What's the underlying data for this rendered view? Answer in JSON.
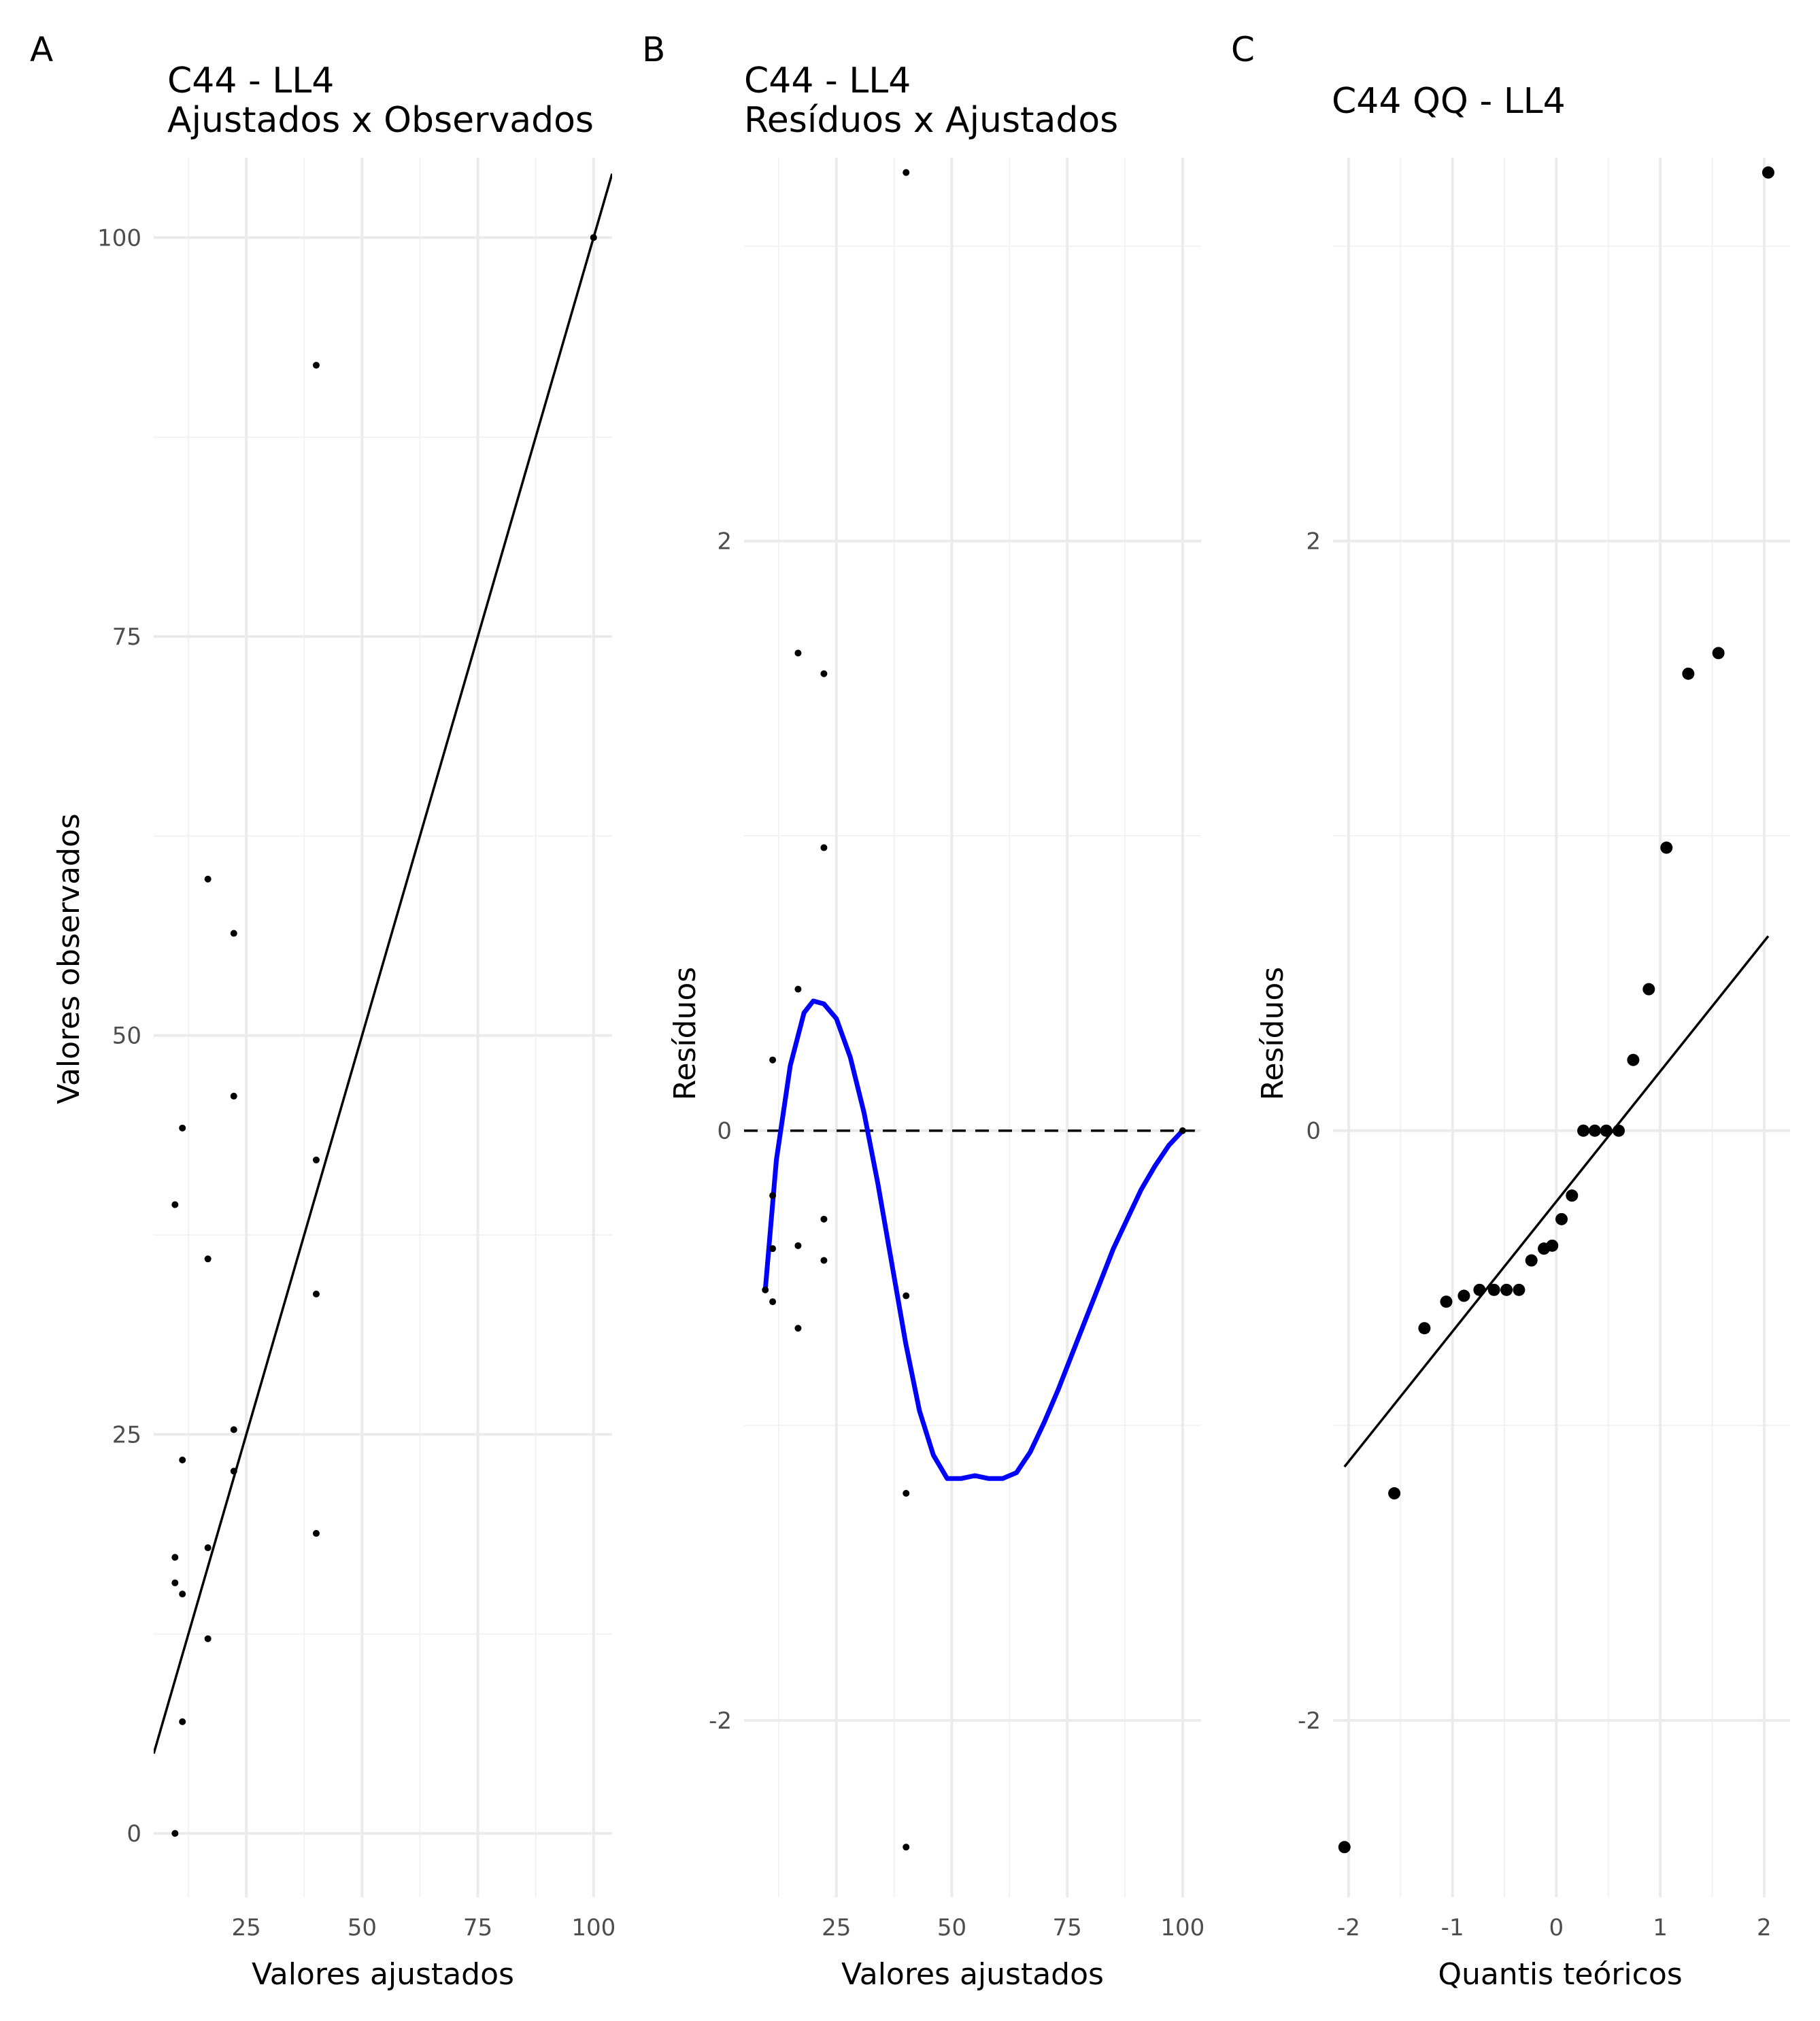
{
  "panels": [
    {
      "letter": "A",
      "title_line1": "C44 - LL4",
      "title_line2": "Ajustados x Observados",
      "xlabel": "Valores ajustados",
      "ylabel": "Valores observados"
    },
    {
      "letter": "B",
      "title_line1": "C44 - LL4",
      "title_line2": "Resíduos x Ajustados",
      "xlabel": "Valores ajustados",
      "ylabel": "Resíduos"
    },
    {
      "letter": "C",
      "title_line1": "C44 QQ - LL4",
      "title_line2": "",
      "xlabel": "Quantis teóricos",
      "ylabel": "Resíduos"
    }
  ],
  "chart_data": [
    {
      "type": "scatter",
      "title": "C44 - LL4 Ajustados x Observados",
      "xlabel": "Valores ajustados",
      "ylabel": "Valores observados",
      "xlim": [
        5,
        104
      ],
      "ylim": [
        -4,
        105
      ],
      "xticks": [
        25,
        50,
        75,
        100
      ],
      "xtick_labels": [
        "25",
        "50",
        "75",
        "100"
      ],
      "yticks": [
        0,
        25,
        50,
        75,
        100
      ],
      "ytick_labels": [
        "0",
        "25",
        "50",
        "75",
        "100"
      ],
      "points": [
        {
          "x": 9.6,
          "y": 0
        },
        {
          "x": 9.6,
          "y": 15.7
        },
        {
          "x": 9.6,
          "y": 17.3
        },
        {
          "x": 9.6,
          "y": 39.4
        },
        {
          "x": 11.2,
          "y": 7.0
        },
        {
          "x": 11.2,
          "y": 15.0
        },
        {
          "x": 11.2,
          "y": 23.4
        },
        {
          "x": 11.2,
          "y": 44.2
        },
        {
          "x": 16.7,
          "y": 12.2
        },
        {
          "x": 16.7,
          "y": 17.9
        },
        {
          "x": 16.7,
          "y": 36.0
        },
        {
          "x": 16.7,
          "y": 59.8
        },
        {
          "x": 22.3,
          "y": 22.7
        },
        {
          "x": 22.3,
          "y": 25.3
        },
        {
          "x": 22.3,
          "y": 46.2
        },
        {
          "x": 22.3,
          "y": 56.4
        },
        {
          "x": 40.1,
          "y": 18.8
        },
        {
          "x": 40.1,
          "y": 33.8
        },
        {
          "x": 40.1,
          "y": 42.2
        },
        {
          "x": 40.1,
          "y": 92.0
        },
        {
          "x": 100,
          "y": 100
        }
      ],
      "reference_line": {
        "slope": 1,
        "intercept": 0
      }
    },
    {
      "type": "scatter",
      "title": "C44 - LL4 Resíduos x Ajustados",
      "xlabel": "Valores ajustados",
      "ylabel": "Resíduos",
      "xlim": [
        5,
        104
      ],
      "ylim": [
        -2.6,
        3.3
      ],
      "xticks": [
        25,
        50,
        75,
        100
      ],
      "xtick_labels": [
        "25",
        "50",
        "75",
        "100"
      ],
      "yticks": [
        -2,
        0,
        2
      ],
      "ytick_labels": [
        "-2",
        "0",
        "2"
      ],
      "points": [
        {
          "x": 9.6,
          "y": -0.54
        },
        {
          "x": 11.2,
          "y": -0.58
        },
        {
          "x": 11.2,
          "y": -0.4
        },
        {
          "x": 11.2,
          "y": -0.22
        },
        {
          "x": 11.2,
          "y": 0.24
        },
        {
          "x": 16.7,
          "y": -0.67
        },
        {
          "x": 16.7,
          "y": -0.39
        },
        {
          "x": 16.7,
          "y": 0.48
        },
        {
          "x": 16.7,
          "y": 1.62
        },
        {
          "x": 22.3,
          "y": -0.44
        },
        {
          "x": 22.3,
          "y": -0.3
        },
        {
          "x": 22.3,
          "y": 0.96
        },
        {
          "x": 22.3,
          "y": 1.55
        },
        {
          "x": 40.1,
          "y": -2.43
        },
        {
          "x": 40.1,
          "y": -1.23
        },
        {
          "x": 40.1,
          "y": -0.56
        },
        {
          "x": 40.1,
          "y": 3.25
        },
        {
          "x": 100,
          "y": 0
        }
      ],
      "zero_line": 0,
      "smooth_curve": {
        "color": "#0000ff",
        "x": [
          9.6,
          12,
          15,
          18,
          20,
          22.3,
          25,
          28,
          31,
          34,
          37,
          40,
          43,
          46,
          49,
          52,
          55,
          58,
          61,
          64,
          67,
          70,
          73,
          76,
          79,
          82,
          85,
          88,
          91,
          94,
          97,
          100
        ],
        "y": [
          -0.54,
          -0.1,
          0.22,
          0.4,
          0.44,
          0.43,
          0.38,
          0.25,
          0.06,
          -0.18,
          -0.45,
          -0.72,
          -0.95,
          -1.1,
          -1.18,
          -1.18,
          -1.17,
          -1.18,
          -1.18,
          -1.16,
          -1.09,
          -0.99,
          -0.88,
          -0.76,
          -0.64,
          -0.52,
          -0.4,
          -0.3,
          -0.2,
          -0.12,
          -0.05,
          0.0
        ]
      }
    },
    {
      "type": "scatter",
      "title": "C44 QQ - LL4",
      "xlabel": "Quantis teóricos",
      "ylabel": "Resíduos",
      "xlim": [
        -2.15,
        2.25
      ],
      "ylim": [
        -2.6,
        3.3
      ],
      "xticks": [
        -2,
        -1,
        0,
        1,
        2
      ],
      "xtick_labels": [
        "-2",
        "-1",
        "0",
        "1",
        "2"
      ],
      "yticks": [
        -2,
        0,
        2
      ],
      "ytick_labels": [
        "-2",
        "0",
        "2"
      ],
      "points": [
        {
          "x": -2.04,
          "y": -2.43
        },
        {
          "x": -1.56,
          "y": -1.23
        },
        {
          "x": -1.27,
          "y": -0.67
        },
        {
          "x": -1.06,
          "y": -0.58
        },
        {
          "x": -0.89,
          "y": -0.56
        },
        {
          "x": -0.74,
          "y": -0.54
        },
        {
          "x": -0.6,
          "y": -0.54
        },
        {
          "x": -0.48,
          "y": -0.54
        },
        {
          "x": -0.36,
          "y": -0.54
        },
        {
          "x": -0.24,
          "y": -0.44
        },
        {
          "x": -0.12,
          "y": -0.4
        },
        {
          "x": -0.04,
          "y": -0.39
        },
        {
          "x": 0.05,
          "y": -0.3
        },
        {
          "x": 0.15,
          "y": -0.22
        },
        {
          "x": 0.26,
          "y": 0
        },
        {
          "x": 0.37,
          "y": 0
        },
        {
          "x": 0.48,
          "y": 0
        },
        {
          "x": 0.6,
          "y": 0
        },
        {
          "x": 0.74,
          "y": 0.24
        },
        {
          "x": 0.89,
          "y": 0.48
        },
        {
          "x": 1.06,
          "y": 0.96
        },
        {
          "x": 1.27,
          "y": 1.55
        },
        {
          "x": 1.56,
          "y": 1.62
        },
        {
          "x": 2.04,
          "y": 3.25
        }
      ],
      "qq_line": {
        "x": [
          -2.04,
          2.04
        ],
        "y": [
          -1.14,
          0.66
        ]
      }
    }
  ]
}
